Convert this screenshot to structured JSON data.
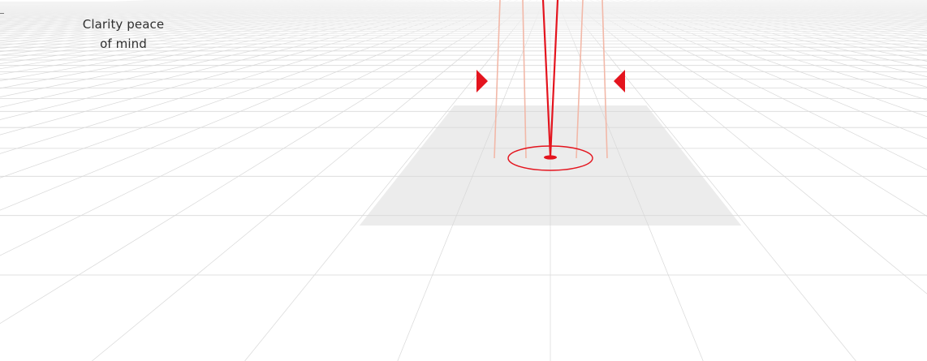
{
  "caption": {
    "line1": "Clarity peace",
    "line2": "of mind"
  },
  "colors": {
    "accent": "#e4141e",
    "grid": "#d8d8d8",
    "shaded_floor": "#ececec",
    "ghost_beam": "#f2b8a8"
  },
  "icons": {
    "left_marker": "triangle-right-icon",
    "right_marker": "triangle-left-icon",
    "target": "target-ellipse-icon"
  }
}
